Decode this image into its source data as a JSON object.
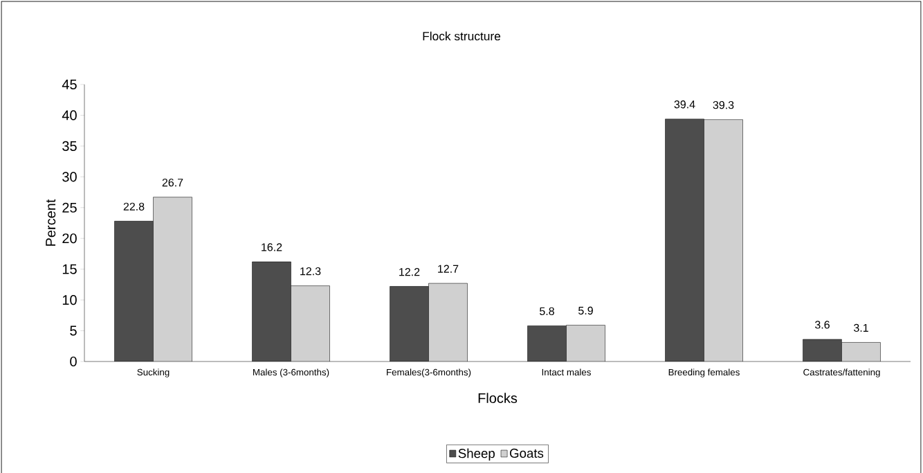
{
  "chart_data": {
    "type": "bar",
    "title": "Flock structure",
    "xlabel": "Flocks",
    "ylabel": "Percent",
    "categories": [
      "Sucking",
      "Males (3-6months)",
      "Females(3-6months)",
      "Intact males",
      "Breeding females",
      "Castrates/fattening"
    ],
    "series": [
      {
        "name": "Sheep",
        "color": "#4d4d4d",
        "values": [
          22.8,
          16.2,
          12.2,
          5.8,
          39.4,
          3.6
        ]
      },
      {
        "name": "Goats",
        "color": "#d0d0d0",
        "values": [
          26.7,
          12.3,
          12.7,
          5.9,
          39.3,
          3.1
        ]
      }
    ],
    "ylim": [
      0,
      45
    ],
    "yticks": [
      0,
      5,
      10,
      15,
      20,
      25,
      30,
      35,
      40,
      45
    ],
    "data_labels": true,
    "legend": "bottom",
    "grid": false
  }
}
